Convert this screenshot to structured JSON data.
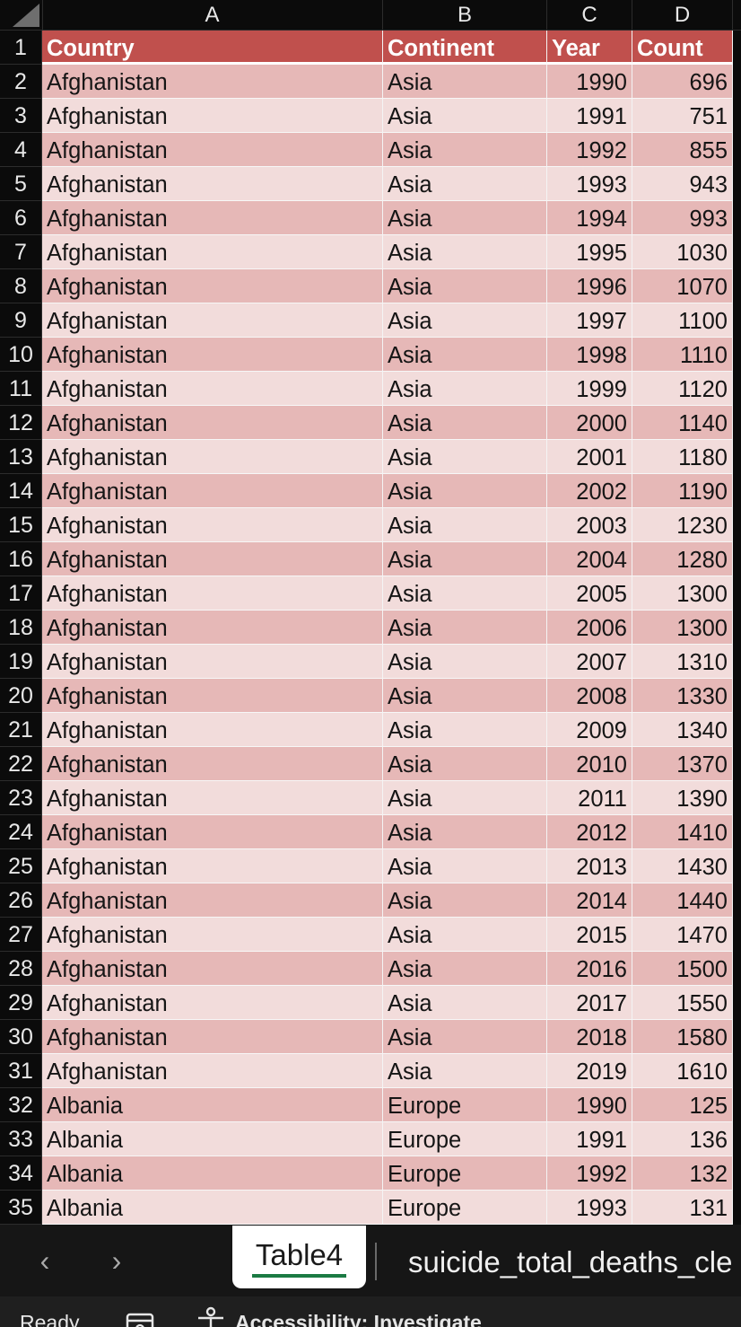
{
  "columns": [
    "A",
    "B",
    "C",
    "D"
  ],
  "table": {
    "headers": [
      "Country",
      "Continent",
      "Year",
      "Count"
    ],
    "rows": [
      {
        "n": "2",
        "country": "Afghanistan",
        "continent": "Asia",
        "year": "1990",
        "count": "696"
      },
      {
        "n": "3",
        "country": "Afghanistan",
        "continent": "Asia",
        "year": "1991",
        "count": "751"
      },
      {
        "n": "4",
        "country": "Afghanistan",
        "continent": "Asia",
        "year": "1992",
        "count": "855"
      },
      {
        "n": "5",
        "country": "Afghanistan",
        "continent": "Asia",
        "year": "1993",
        "count": "943"
      },
      {
        "n": "6",
        "country": "Afghanistan",
        "continent": "Asia",
        "year": "1994",
        "count": "993"
      },
      {
        "n": "7",
        "country": "Afghanistan",
        "continent": "Asia",
        "year": "1995",
        "count": "1030"
      },
      {
        "n": "8",
        "country": "Afghanistan",
        "continent": "Asia",
        "year": "1996",
        "count": "1070"
      },
      {
        "n": "9",
        "country": "Afghanistan",
        "continent": "Asia",
        "year": "1997",
        "count": "1100"
      },
      {
        "n": "10",
        "country": "Afghanistan",
        "continent": "Asia",
        "year": "1998",
        "count": "1110"
      },
      {
        "n": "11",
        "country": "Afghanistan",
        "continent": "Asia",
        "year": "1999",
        "count": "1120"
      },
      {
        "n": "12",
        "country": "Afghanistan",
        "continent": "Asia",
        "year": "2000",
        "count": "1140"
      },
      {
        "n": "13",
        "country": "Afghanistan",
        "continent": "Asia",
        "year": "2001",
        "count": "1180"
      },
      {
        "n": "14",
        "country": "Afghanistan",
        "continent": "Asia",
        "year": "2002",
        "count": "1190"
      },
      {
        "n": "15",
        "country": "Afghanistan",
        "continent": "Asia",
        "year": "2003",
        "count": "1230"
      },
      {
        "n": "16",
        "country": "Afghanistan",
        "continent": "Asia",
        "year": "2004",
        "count": "1280"
      },
      {
        "n": "17",
        "country": "Afghanistan",
        "continent": "Asia",
        "year": "2005",
        "count": "1300"
      },
      {
        "n": "18",
        "country": "Afghanistan",
        "continent": "Asia",
        "year": "2006",
        "count": "1300"
      },
      {
        "n": "19",
        "country": "Afghanistan",
        "continent": "Asia",
        "year": "2007",
        "count": "1310"
      },
      {
        "n": "20",
        "country": "Afghanistan",
        "continent": "Asia",
        "year": "2008",
        "count": "1330"
      },
      {
        "n": "21",
        "country": "Afghanistan",
        "continent": "Asia",
        "year": "2009",
        "count": "1340"
      },
      {
        "n": "22",
        "country": "Afghanistan",
        "continent": "Asia",
        "year": "2010",
        "count": "1370"
      },
      {
        "n": "23",
        "country": "Afghanistan",
        "continent": "Asia",
        "year": "2011",
        "count": "1390"
      },
      {
        "n": "24",
        "country": "Afghanistan",
        "continent": "Asia",
        "year": "2012",
        "count": "1410"
      },
      {
        "n": "25",
        "country": "Afghanistan",
        "continent": "Asia",
        "year": "2013",
        "count": "1430"
      },
      {
        "n": "26",
        "country": "Afghanistan",
        "continent": "Asia",
        "year": "2014",
        "count": "1440"
      },
      {
        "n": "27",
        "country": "Afghanistan",
        "continent": "Asia",
        "year": "2015",
        "count": "1470"
      },
      {
        "n": "28",
        "country": "Afghanistan",
        "continent": "Asia",
        "year": "2016",
        "count": "1500"
      },
      {
        "n": "29",
        "country": "Afghanistan",
        "continent": "Asia",
        "year": "2017",
        "count": "1550"
      },
      {
        "n": "30",
        "country": "Afghanistan",
        "continent": "Asia",
        "year": "2018",
        "count": "1580"
      },
      {
        "n": "31",
        "country": "Afghanistan",
        "continent": "Asia",
        "year": "2019",
        "count": "1610"
      },
      {
        "n": "32",
        "country": "Albania",
        "continent": "Europe",
        "year": "1990",
        "count": "125"
      },
      {
        "n": "33",
        "country": "Albania",
        "continent": "Europe",
        "year": "1991",
        "count": "136"
      },
      {
        "n": "34",
        "country": "Albania",
        "continent": "Europe",
        "year": "1992",
        "count": "132"
      },
      {
        "n": "35",
        "country": "Albania",
        "continent": "Europe",
        "year": "1993",
        "count": "131"
      }
    ]
  },
  "sheet_tabs": {
    "prev_icon": "chevron-left-icon",
    "next_icon": "chevron-right-icon",
    "prev_glyph": "‹",
    "next_glyph": "›",
    "active": "Table4",
    "other": "suicide_total_deaths_cle"
  },
  "status": {
    "ready": "Ready",
    "sheet_icon": "workbook-statistics-icon",
    "accessibility_icon": "accessibility-icon",
    "accessibility": "Accessibility: Investigate"
  },
  "colors": {
    "header_fill": "#c0504d",
    "band_dark": "#e6b8b7",
    "band_light": "#f2dcdb",
    "active_tab_underline": "#1b7a43"
  }
}
